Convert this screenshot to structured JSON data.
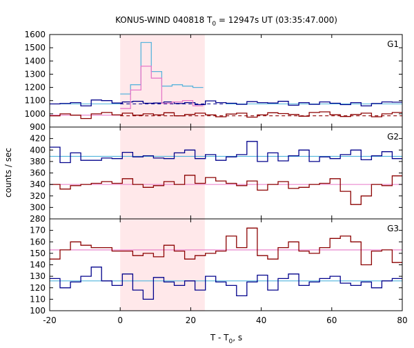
{
  "chart_data": {
    "type": "line",
    "title": "KONUS-WIND 040818 T",
    "title_sub": "0",
    "title_rest": " = 12947s UT (03:35:47.000)",
    "xlabel": "T - T",
    "xlabel_sub": "0",
    "xlabel_rest": ", s",
    "ylabel": "counts / sec",
    "xlim": [
      -20,
      80
    ],
    "xticks": [
      -20,
      0,
      20,
      40,
      60,
      80
    ],
    "highlight_interval": [
      0,
      24
    ],
    "highlight_color": "#ffe8ea",
    "colors": {
      "high": "#00008b",
      "high_light": "#5ab4dc",
      "low": "#8b0000",
      "low_light": "#e678c8",
      "bg_line": "#4fb4dc"
    },
    "panels": [
      {
        "name": "G1",
        "ylim": [
          900,
          1600
        ],
        "yticks": [
          900,
          1000,
          1100,
          1200,
          1300,
          1400,
          1500,
          1600
        ],
        "bin_width": 2.944,
        "x0": -20,
        "series": [
          {
            "name": "",
            "color": "#00008b",
            "values": [
              1075,
              1078,
              1085,
              1060,
              1105,
              1100,
              1082,
              1090,
              1095,
              1080,
              1082,
              1090,
              1078,
              1085,
              1070,
              1098,
              1085,
              1080,
              1072,
              1092,
              1085,
              1082,
              1095,
              1065,
              1085,
              1072,
              1090,
              1080,
              1070,
              1085,
              1060,
              1078,
              1090,
              1088,
              1080
            ]
          },
          {
            "name": "",
            "color": "#8b0000",
            "values": [
              985,
              1000,
              990,
              965,
              1000,
              1010,
              992,
              1005,
              990,
              1000,
              992,
              1008,
              985,
              995,
              1005,
              992,
              978,
              998,
              1005,
              975,
              992,
              1008,
              1002,
              995,
              982,
              1010,
              1015,
              993,
              980,
              995,
              1005,
              978,
              1000,
              1010,
              990
            ]
          },
          {
            "name": "",
            "color": "#5ab4dc",
            "x_start": 0,
            "values": [
              1150,
              1220,
              1540,
              1320,
              1210,
              1220,
              1210,
              1200
            ]
          },
          {
            "name": "",
            "color": "#e678c8",
            "x_start": 0,
            "values": [
              1040,
              1180,
              1360,
              1270,
              1080,
              1090,
              1100,
              1060
            ]
          }
        ],
        "bg_levels": [
          {
            "value": 1075,
            "color": "#4fb4dc",
            "x_end": 0
          },
          {
            "value": 1075,
            "color": "#00008b",
            "dashed": true,
            "x_start": 0,
            "x_end": 30
          },
          {
            "value": 1075,
            "color": "#4fb4dc",
            "x_start": 30
          },
          {
            "value": 990,
            "color": "#e678c8",
            "x_end": 0
          },
          {
            "value": 985,
            "color": "#8b0000",
            "dashed": true,
            "x_start": 0
          }
        ]
      },
      {
        "name": "G2",
        "ylim": [
          280,
          440
        ],
        "yticks": [
          280,
          300,
          320,
          340,
          360,
          380,
          400,
          420
        ],
        "bin_width": 2.944,
        "x0": -20,
        "series": [
          {
            "name": "",
            "color": "#00008b",
            "values": [
              405,
              378,
              395,
              382,
              382,
              386,
              385,
              396,
              388,
              390,
              386,
              385,
              395,
              400,
              385,
              392,
              382,
              388,
              392,
              415,
              380,
              395,
              381,
              390,
              400,
              380,
              388,
              385,
              392,
              400,
              383,
              390,
              397,
              385,
              402
            ]
          },
          {
            "name": "",
            "color": "#8b0000",
            "values": [
              340,
              332,
              338,
              340,
              342,
              345,
              342,
              350,
              340,
              335,
              338,
              345,
              340,
              356,
              342,
              352,
              346,
              342,
              338,
              346,
              330,
              340,
              345,
              333,
              335,
              340,
              342,
              350,
              328,
              305,
              320,
              340,
              338,
              355,
              325
            ]
          }
        ],
        "bg_levels": [
          {
            "value": 389,
            "color": "#4fb4dc"
          },
          {
            "value": 340,
            "color": "#e678c8"
          }
        ]
      },
      {
        "name": "G3",
        "ylim": [
          100,
          180
        ],
        "yticks": [
          100,
          110,
          120,
          130,
          140,
          150,
          160,
          170
        ],
        "bin_width": 2.944,
        "x0": -20,
        "series": [
          {
            "name": "",
            "color": "#8b0000",
            "values": [
              145,
              153,
              160,
              157,
              155,
              155,
              152,
              152,
              148,
              150,
              147,
              157,
              152,
              145,
              148,
              150,
              152,
              165,
              155,
              172,
              148,
              145,
              155,
              160,
              152,
              150,
              155,
              163,
              165,
              160,
              140,
              152,
              153,
              142,
              163
            ]
          },
          {
            "name": "",
            "color": "#00008b",
            "values": [
              128,
              120,
              125,
              130,
              138,
              126,
              122,
              132,
              118,
              110,
              129,
              125,
              122,
              126,
              118,
              130,
              125,
              122,
              113,
              125,
              131,
              118,
              128,
              132,
              122,
              125,
              128,
              130,
              124,
              122,
              125,
              120,
              126,
              128,
              130
            ]
          }
        ],
        "bg_levels": [
          {
            "value": 153,
            "color": "#e678c8"
          },
          {
            "value": 126,
            "color": "#4fb4dc"
          }
        ]
      }
    ]
  }
}
